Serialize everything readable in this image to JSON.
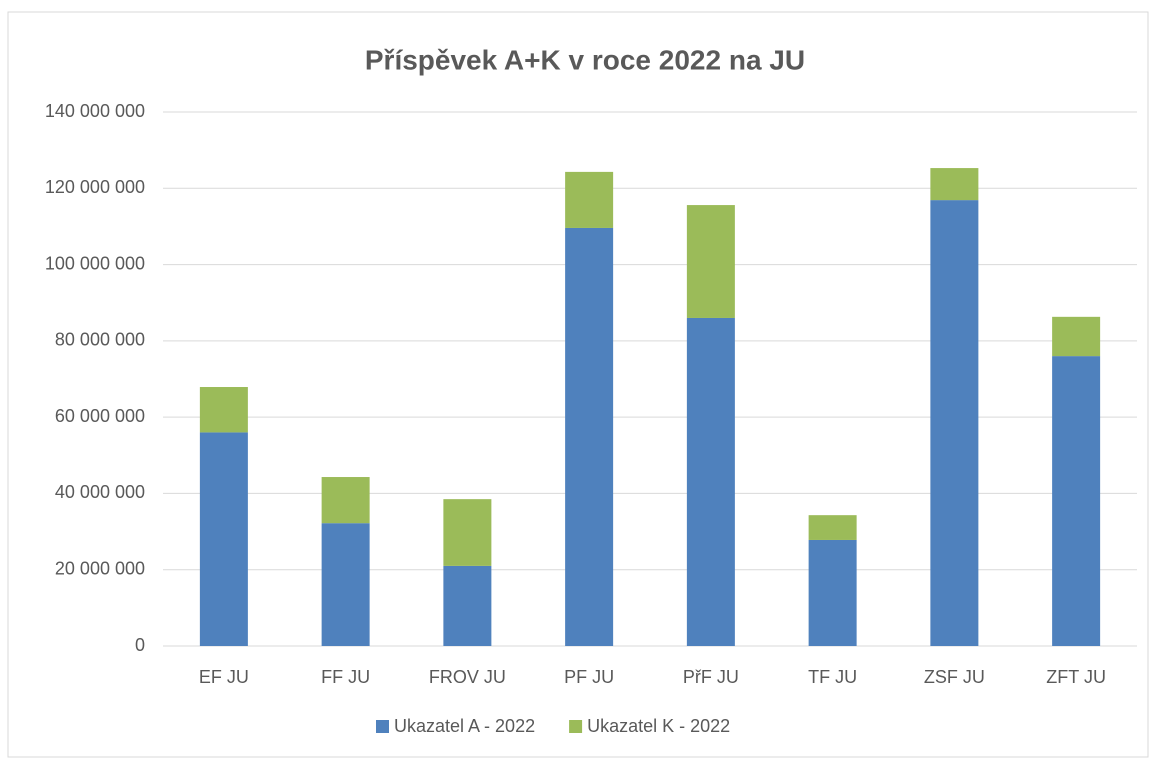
{
  "chart_data": {
    "type": "stacked_bar",
    "title": "Příspěvek A+K v roce 2022 na JU",
    "categories": [
      "EF JU",
      "FF JU",
      "FROV JU",
      "PF JU",
      "PřF JU",
      "TF JU",
      "ZSF JU",
      "ZFT JU"
    ],
    "series": [
      {
        "name": "Ukazatel A - 2022",
        "color": "#4f81bd",
        "values": [
          56000000,
          32200000,
          21000000,
          109600000,
          86000000,
          27800000,
          116900000,
          76000000
        ]
      },
      {
        "name": "Ukazatel K - 2022",
        "color": "#9bbb59",
        "values": [
          11900000,
          12100000,
          17500000,
          14700000,
          29600000,
          6500000,
          8400000,
          10300000
        ]
      }
    ],
    "ylim": [
      0,
      140000000
    ],
    "yticks": [
      0,
      {
        "value": 20000000,
        "label": "20 000 000"
      },
      {
        "value": 40000000,
        "label": "40 000 000"
      },
      {
        "value": 60000000,
        "label": "60 000 000"
      },
      {
        "value": 80000000,
        "label": "80 000 000"
      },
      {
        "value": 100000000,
        "label": "100 000 000"
      },
      {
        "value": 120000000,
        "label": "120 000 000"
      },
      {
        "value": 140000000,
        "label": "140 000 000"
      }
    ],
    "grid": true,
    "legend": "bottom"
  }
}
